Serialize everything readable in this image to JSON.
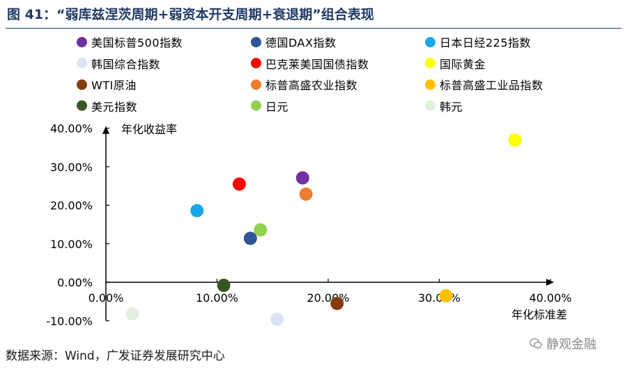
{
  "title": "图 41：“弱库兹涅茨周期+弱资本开支周期+衰退期”组合表现",
  "source": "数据来源：Wind，广发证券发展研究中心",
  "watermark": {
    "text": "静观金融",
    "icon": "wechat-icon"
  },
  "chart_data": {
    "type": "scatter",
    "xlabel": "年化标准差",
    "ylabel": "年化收益率",
    "xlim": [
      0,
      0.4
    ],
    "ylim": [
      -0.1,
      0.4
    ],
    "x_ticks": [
      "0.00%",
      "10.00%",
      "20.00%",
      "30.00%",
      "40.00%"
    ],
    "y_ticks": [
      "40.00%",
      "30.00%",
      "20.00%",
      "10.00%",
      "0.00%",
      "-10.00%"
    ],
    "grid": false,
    "legend_position": "top",
    "series": [
      {
        "name": "美国标普500指数",
        "color": "#7030a0",
        "x": 0.177,
        "y": 0.271
      },
      {
        "name": "德国DAX指数",
        "color": "#2f5597",
        "x": 0.13,
        "y": 0.114
      },
      {
        "name": "日本日经225指数",
        "color": "#19a7e8",
        "x": 0.082,
        "y": 0.186
      },
      {
        "name": "韩国综合指数",
        "color": "#dae3f3",
        "x": 0.154,
        "y": -0.096
      },
      {
        "name": "巴克莱美国国债指数",
        "color": "#ff0000",
        "x": 0.12,
        "y": 0.255
      },
      {
        "name": "国际黄金",
        "color": "#ffff00",
        "x": 0.368,
        "y": 0.369
      },
      {
        "name": "WTI原油",
        "color": "#843c0c",
        "x": 0.208,
        "y": -0.055
      },
      {
        "name": "标普高盛农业指数",
        "color": "#ed7d31",
        "x": 0.18,
        "y": 0.229
      },
      {
        "name": "标普高盛工业品指数",
        "color": "#ffc000",
        "x": 0.306,
        "y": -0.035
      },
      {
        "name": "美元指数",
        "color": "#375623",
        "x": 0.106,
        "y": -0.008
      },
      {
        "name": "日元",
        "color": "#92d050",
        "x": 0.139,
        "y": 0.136
      },
      {
        "name": "韩元",
        "color": "#e2efda",
        "x": 0.024,
        "y": -0.082
      }
    ]
  }
}
